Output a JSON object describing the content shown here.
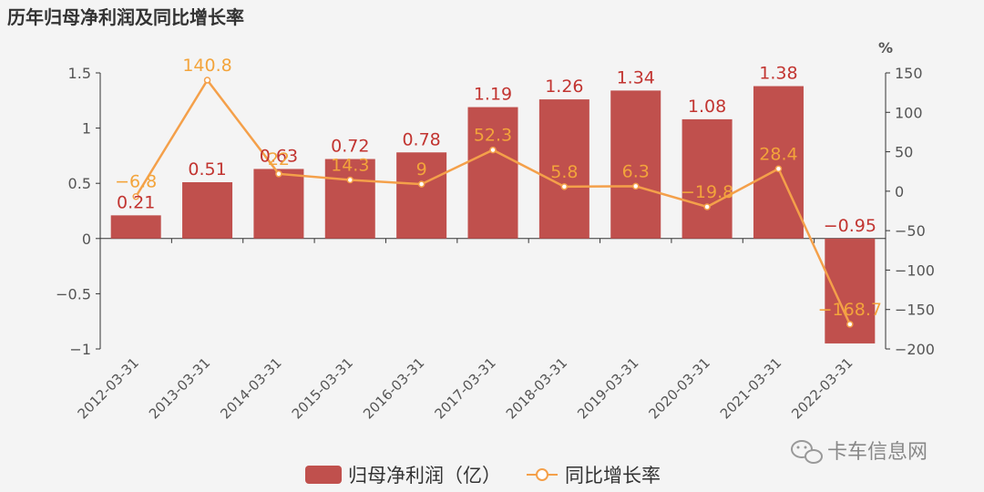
{
  "chart_data": {
    "type": "bar",
    "title": "历年归母净利润及同比增长率",
    "categories": [
      "2012-03-31",
      "2013-03-31",
      "2014-03-31",
      "2015-03-31",
      "2016-03-31",
      "2017-03-31",
      "2018-03-31",
      "2019-03-31",
      "2020-03-31",
      "2021-03-31",
      "2022-03-31"
    ],
    "series": [
      {
        "name": "归母净利润（亿）",
        "type": "bar",
        "axis": "left",
        "values": [
          0.21,
          0.51,
          0.63,
          0.72,
          0.78,
          1.19,
          1.26,
          1.34,
          1.08,
          1.38,
          -0.95
        ],
        "labels": [
          "0.21",
          "0.51",
          "0.63",
          "0.72",
          "0.78",
          "1.19",
          "1.26",
          "1.34",
          "1.08",
          "1.38",
          "−0.95"
        ]
      },
      {
        "name": "同比增长率",
        "type": "line",
        "axis": "right",
        "values": [
          -6.8,
          140.8,
          22,
          14.3,
          9,
          52.3,
          5.8,
          6.3,
          -19.8,
          28.4,
          -168.7
        ],
        "labels": [
          "−6.8",
          "140.8",
          "22",
          "14.3",
          "9",
          "52.3",
          "5.8",
          "6.3",
          "−19.8",
          "28.4",
          "−168.7"
        ]
      }
    ],
    "y_left": {
      "range": [
        -1,
        1.5
      ],
      "ticks": [
        -1,
        -0.5,
        0,
        0.5,
        1,
        1.5
      ],
      "tick_labels": [
        "−1",
        "−0.5",
        "0",
        "0.5",
        "1",
        "1.5"
      ]
    },
    "y_right": {
      "label": "%",
      "range": [
        -200,
        150
      ],
      "ticks": [
        -200,
        -150,
        -100,
        -50,
        0,
        50,
        100,
        150
      ],
      "tick_labels": [
        "−200",
        "−150",
        "−100",
        "−50",
        "0",
        "50",
        "100",
        "150"
      ]
    },
    "grid": false,
    "legend_position": "bottom-center",
    "colors": {
      "bar": "#c0504d",
      "line": "#f4a04a",
      "bar_label": "#c23531",
      "line_label": "#f3a43b"
    }
  },
  "watermark": {
    "text": "卡车信息网",
    "icon": "wechat-icon"
  }
}
